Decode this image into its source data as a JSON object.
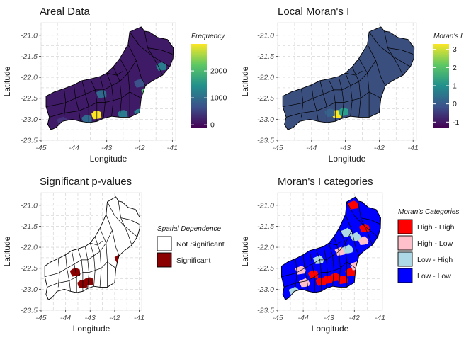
{
  "chart_data": [
    {
      "type": "choropleth",
      "title": "Areal Data",
      "xlabel": "Longitude",
      "ylabel": "Latitude",
      "x_ticks": [
        "-45",
        "-44",
        "-43",
        "-42",
        "-41"
      ],
      "y_ticks": [
        "-21.0",
        "-21.5",
        "-22.0",
        "-22.5",
        "-23.0",
        "-23.5"
      ],
      "xlim": [
        -45,
        -40.9
      ],
      "ylim": [
        -23.5,
        -20.7
      ],
      "grid": true,
      "legend": {
        "title": "Frequency",
        "kind": "continuous",
        "palette": [
          "#440154",
          "#3b528b",
          "#21908c",
          "#5dc863",
          "#fde725"
        ],
        "range": [
          -100,
          3000
        ],
        "ticks": [
          "0",
          "1000",
          "2000"
        ],
        "tick_values": [
          0,
          1000,
          2000
        ]
      },
      "base_fill": "#3f1a66",
      "highlights": [
        {
          "lon": -43.3,
          "lat": -22.9,
          "fill": "#fde725"
        },
        {
          "lon": -42.5,
          "lat": -22.88,
          "fill": "#2a7b8e"
        },
        {
          "lon": -42.0,
          "lat": -22.85,
          "fill": "#2a7b8e"
        },
        {
          "lon": -41.78,
          "lat": -22.35,
          "fill": "#4ac16d"
        },
        {
          "lon": -41.33,
          "lat": -21.75,
          "fill": "#2a7b8e"
        },
        {
          "lon": -43.15,
          "lat": -22.4,
          "fill": "#31688e"
        },
        {
          "lon": -42.0,
          "lat": -22.15,
          "fill": "#3b528b"
        },
        {
          "lon": -43.6,
          "lat": -23.0,
          "fill": "#31688e"
        },
        {
          "lon": -44.35,
          "lat": -23.05,
          "fill": "#46337e"
        }
      ]
    },
    {
      "type": "choropleth",
      "title": "Local Moran's I",
      "xlabel": "Longitude",
      "ylabel": "Latitude",
      "x_ticks": [
        "-45",
        "-44",
        "-43",
        "-42",
        "-41"
      ],
      "y_ticks": [
        "-21.0",
        "-21.5",
        "-22.0",
        "-22.5",
        "-23.0",
        "-23.5"
      ],
      "xlim": [
        -45,
        -40.9
      ],
      "ylim": [
        -23.5,
        -20.7
      ],
      "grid": true,
      "legend": {
        "title": "Moran's I",
        "kind": "continuous",
        "palette": [
          "#440154",
          "#3b528b",
          "#21908c",
          "#5dc863",
          "#fde725"
        ],
        "range": [
          -1.3,
          3.3
        ],
        "ticks": [
          "-1",
          "0",
          "1",
          "2",
          "3"
        ],
        "tick_values": [
          -1,
          0,
          1,
          2,
          3
        ]
      },
      "base_fill": "#3b4f7f",
      "highlights": [
        {
          "lon": -43.25,
          "lat": -22.88,
          "fill": "#fde725"
        },
        {
          "lon": -43.05,
          "lat": -22.83,
          "fill": "#2a9d8f"
        },
        {
          "lon": -43.45,
          "lat": -22.85,
          "fill": "#37628c"
        }
      ]
    },
    {
      "type": "choropleth",
      "title": "Significant p-values",
      "xlabel": "Longitude",
      "ylabel": "Latitude",
      "x_ticks": [
        "-45",
        "-44",
        "-43",
        "-42",
        "-41"
      ],
      "y_ticks": [
        "-21.0",
        "-21.5",
        "-22.0",
        "-22.5",
        "-23.0",
        "-23.5"
      ],
      "xlim": [
        -45,
        -40.9
      ],
      "ylim": [
        -23.5,
        -20.7
      ],
      "grid": true,
      "legend": {
        "title": "Spatial Dependence",
        "kind": "discrete",
        "items": [
          {
            "label": "Not Significant",
            "color": "#ffffff"
          },
          {
            "label": "Significant",
            "color": "#8b0000"
          }
        ]
      },
      "base_fill": "#ffffff",
      "highlights": [
        {
          "lon": -43.3,
          "lat": -22.88,
          "fill": "#8b0000"
        },
        {
          "lon": -43.05,
          "lat": -22.82,
          "fill": "#8b0000"
        },
        {
          "lon": -43.6,
          "lat": -22.6,
          "fill": "#8b0000"
        },
        {
          "lon": -41.78,
          "lat": -22.28,
          "fill": "#8b0000"
        }
      ]
    },
    {
      "type": "choropleth",
      "title": "Moran's I categories",
      "xlabel": "Longitude",
      "ylabel": "Latitude",
      "x_ticks": [
        "-45",
        "-44",
        "-43",
        "-42",
        "-41"
      ],
      "y_ticks": [
        "-21.0",
        "-21.5",
        "-22.0",
        "-22.5",
        "-23.0",
        "-23.5"
      ],
      "xlim": [
        -45,
        -40.9
      ],
      "ylim": [
        -23.5,
        -20.7
      ],
      "grid": true,
      "legend": {
        "title": "Moran's Categories",
        "kind": "discrete",
        "items": [
          {
            "label": "High - High",
            "color": "#ff0000"
          },
          {
            "label": "High - Low",
            "color": "#ffc0cb"
          },
          {
            "label": "Low - High",
            "color": "#add8e6"
          },
          {
            "label": "Low - Low",
            "color": "#0000ff"
          }
        ]
      },
      "base_fill": "#0000ff",
      "highlights": [
        {
          "lon": -43.3,
          "lat": -22.82,
          "fill": "#ff0000"
        },
        {
          "lon": -43.05,
          "lat": -22.78,
          "fill": "#ff0000"
        },
        {
          "lon": -42.75,
          "lat": -22.72,
          "fill": "#ff0000"
        },
        {
          "lon": -42.45,
          "lat": -22.78,
          "fill": "#ff0000"
        },
        {
          "lon": -42.15,
          "lat": -22.6,
          "fill": "#ff0000"
        },
        {
          "lon": -43.6,
          "lat": -22.65,
          "fill": "#ff0000"
        },
        {
          "lon": -41.6,
          "lat": -21.55,
          "fill": "#ff0000"
        },
        {
          "lon": -42.05,
          "lat": -21.0,
          "fill": "#ff0000"
        },
        {
          "lon": -41.95,
          "lat": -22.45,
          "fill": "#ffc0cb"
        },
        {
          "lon": -44.1,
          "lat": -22.55,
          "fill": "#ffc0cb"
        },
        {
          "lon": -41.65,
          "lat": -21.85,
          "fill": "#ffc0cb"
        },
        {
          "lon": -42.55,
          "lat": -22.1,
          "fill": "#ffc0cb"
        },
        {
          "lon": -43.95,
          "lat": -22.85,
          "fill": "#ffc0cb"
        },
        {
          "lon": -42.25,
          "lat": -22.05,
          "fill": "#add8e6"
        },
        {
          "lon": -43.4,
          "lat": -22.3,
          "fill": "#add8e6"
        },
        {
          "lon": -44.35,
          "lat": -23.05,
          "fill": "#add8e6"
        },
        {
          "lon": -42.3,
          "lat": -21.65,
          "fill": "#add8e6"
        },
        {
          "lon": -41.95,
          "lat": -21.75,
          "fill": "#add8e6"
        }
      ]
    }
  ]
}
